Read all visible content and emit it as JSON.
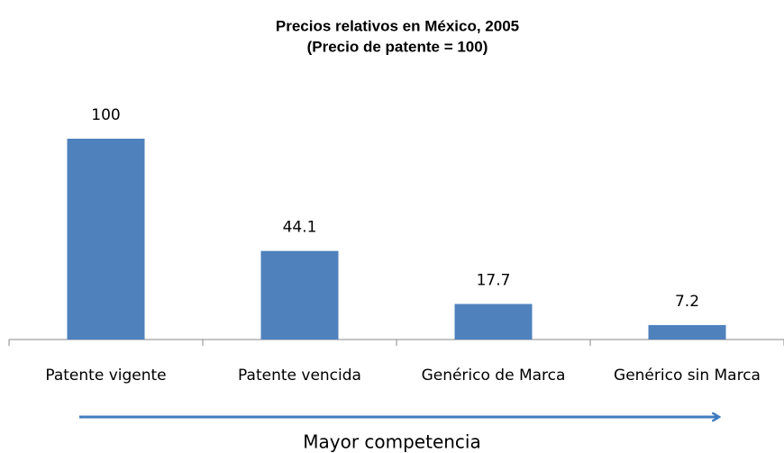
{
  "chart_data": {
    "type": "bar",
    "title": "Precios relativos en México, 2005",
    "subtitle": "(Precio de patente  = 100)",
    "categories": [
      "Patente vigente",
      "Patente vencida",
      "Genérico de Marca",
      "Genérico sin Marca"
    ],
    "values": [
      100,
      44.1,
      17.7,
      7.2
    ],
    "color": "#4f81bd",
    "annotation": "Mayor competencia"
  }
}
